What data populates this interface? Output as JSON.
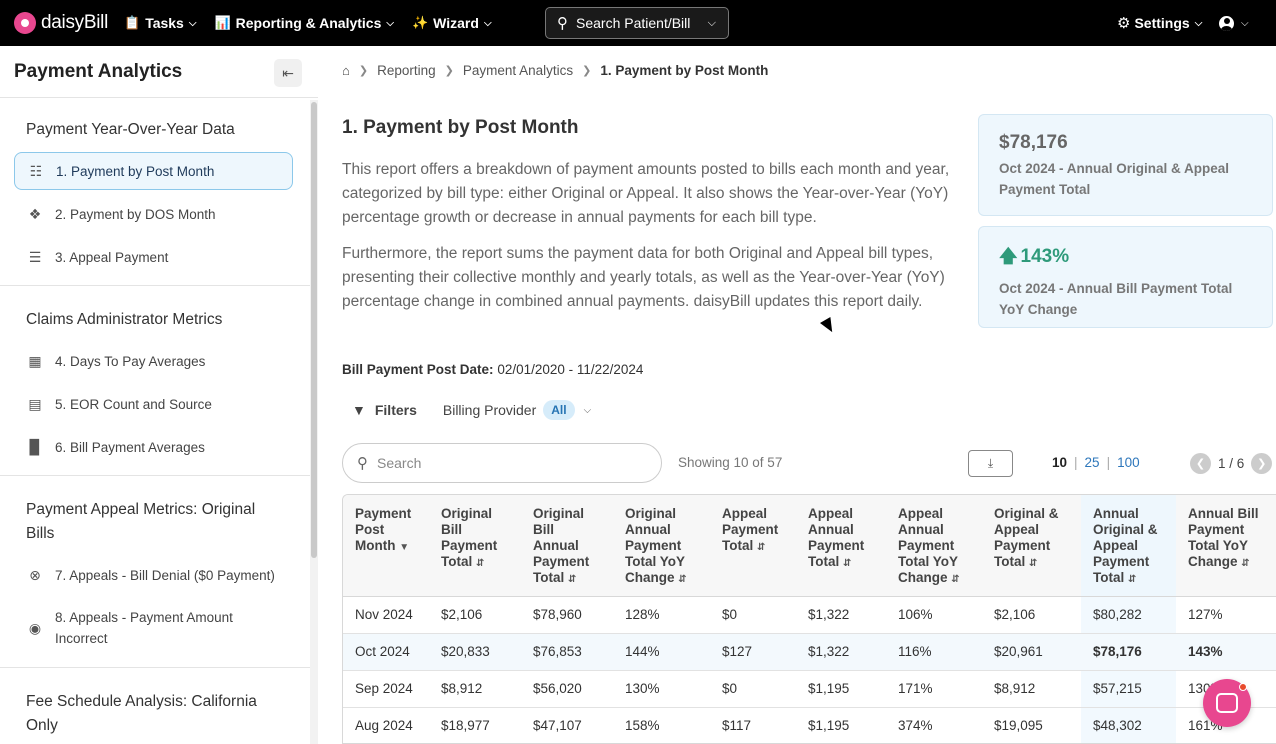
{
  "nav": {
    "brand": "daisyBill",
    "items": [
      {
        "label": "Tasks",
        "icon": "clipboard-icon"
      },
      {
        "label": "Reporting & Analytics",
        "icon": "chart-icon"
      },
      {
        "label": "Wizard",
        "icon": "wand-icon"
      }
    ],
    "search_label": "Search Patient/Bill",
    "settings_label": "Settings"
  },
  "sidebar": {
    "title": "Payment Analytics",
    "sections": [
      {
        "title": "Payment Year-Over-Year Data",
        "items": [
          {
            "label": "1. Payment by Post Month",
            "icon": "dollar-doc-icon",
            "active": true
          },
          {
            "label": "2. Payment by DOS Month",
            "icon": "bandage-icon"
          },
          {
            "label": "3. Appeal Payment",
            "icon": "appeal-doc-icon"
          }
        ]
      },
      {
        "title": "Claims Administrator Metrics",
        "items": [
          {
            "label": "4. Days To Pay Averages",
            "icon": "calendar-icon"
          },
          {
            "label": "5. EOR Count and Source",
            "icon": "document-icon"
          },
          {
            "label": "6. Bill Payment Averages",
            "icon": "bar-chart-icon"
          }
        ]
      },
      {
        "title": "Payment Appeal Metrics: Original Bills",
        "items": [
          {
            "label": "7. Appeals - Bill Denial ($0 Payment)",
            "icon": "x-circle-icon"
          },
          {
            "label": "8. Appeals - Payment Amount Incorrect",
            "icon": "dollar-circle-icon"
          }
        ]
      },
      {
        "title": "Fee Schedule Analysis: California Only",
        "items": []
      }
    ]
  },
  "breadcrumb": [
    "Reporting",
    "Payment Analytics",
    "1. Payment by Post Month"
  ],
  "report": {
    "title": "1. Payment by Post Month",
    "desc1": "This report offers a breakdown of payment amounts posted to bills each month and year, categorized by bill type: either Original or Appeal. It also shows the Year-over-Year (YoY) percentage growth or decrease in annual payments for each bill type.",
    "desc2": "Furthermore, the report sums the payment data for both Original and Appeal bill types, presenting their collective monthly and yearly totals, as well as the Year-over-Year (YoY) percentage change in combined annual payments. daisyBill updates this report daily."
  },
  "cards": [
    {
      "value": "$78,176",
      "label": "Oct 2024 - Annual Original & Appeal Payment Total"
    },
    {
      "value": "143%",
      "label": "Oct 2024 - Annual Bill Payment Total YoY Change",
      "trend": "up"
    }
  ],
  "postdate": {
    "label": "Bill Payment Post Date:",
    "value": "02/01/2020 - 11/22/2024"
  },
  "filters": {
    "label": "Filters",
    "provider_label": "Billing Provider",
    "provider_value": "All"
  },
  "table_controls": {
    "search_placeholder": "Search",
    "showing": "Showing 10 of 57",
    "page_sizes": [
      "10",
      "25",
      "100"
    ],
    "selected_page_size": "10",
    "page": "1 / 6"
  },
  "table": {
    "headers": [
      "Payment Post Month",
      "Original Bill Payment Total",
      "Original Bill Annual Payment Total",
      "Original Annual Payment Total YoY Change",
      "Appeal Payment Total",
      "Appeal Annual Payment Total",
      "Appeal Annual Payment Total YoY Change",
      "Original & Appeal Payment Total",
      "Annual Original & Appeal Payment Total",
      "Annual Bill Payment Total YoY Change"
    ],
    "rows": [
      [
        "Nov 2024",
        "$2,106",
        "$78,960",
        "128%",
        "$0",
        "$1,322",
        "106%",
        "$2,106",
        "$80,282",
        "127%"
      ],
      [
        "Oct 2024",
        "$20,833",
        "$76,853",
        "144%",
        "$127",
        "$1,322",
        "116%",
        "$20,961",
        "$78,176",
        "143%"
      ],
      [
        "Sep 2024",
        "$8,912",
        "$56,020",
        "130%",
        "$0",
        "$1,195",
        "171%",
        "$8,912",
        "$57,215",
        "130%"
      ],
      [
        "Aug 2024",
        "$18,977",
        "$47,107",
        "158%",
        "$117",
        "$1,195",
        "374%",
        "$19,095",
        "$48,302",
        "161%"
      ]
    ]
  }
}
